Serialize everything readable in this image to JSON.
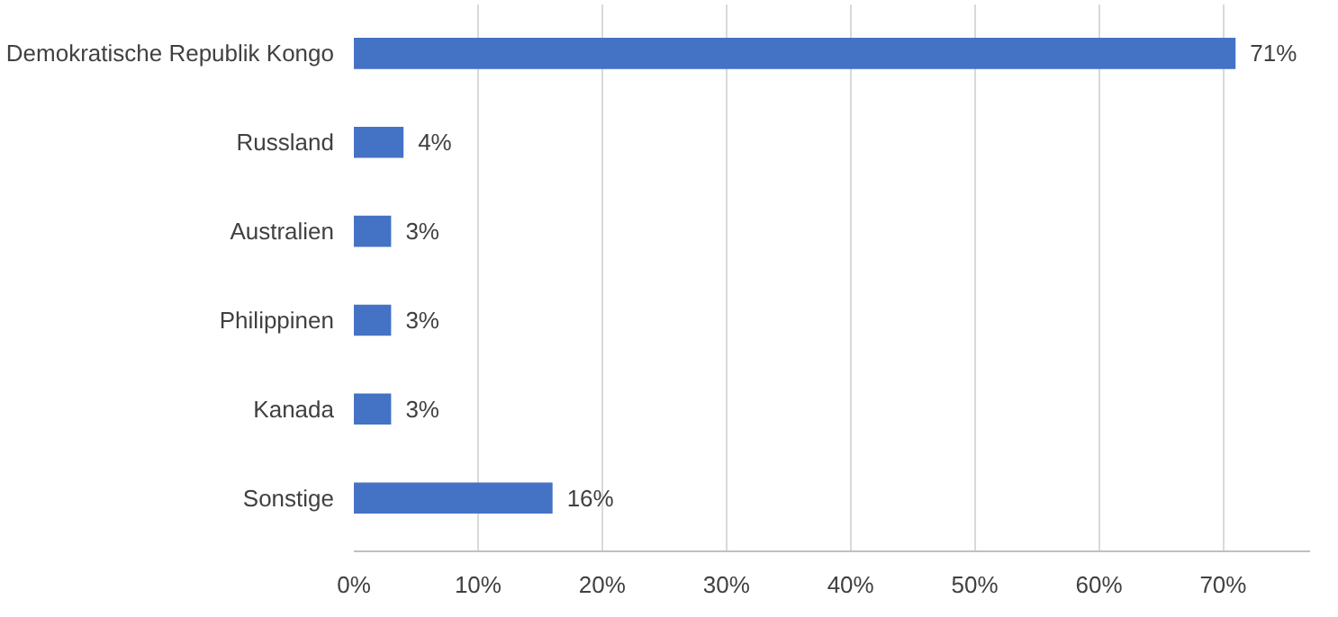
{
  "chart_data": {
    "type": "bar",
    "orientation": "horizontal",
    "categories": [
      "Demokratische Republik Kongo",
      "Russland",
      "Australien",
      "Philippinen",
      "Kanada",
      "Sonstige"
    ],
    "values": [
      71,
      4,
      3,
      3,
      3,
      16
    ],
    "color": "#4472c4",
    "xlim": [
      0,
      77
    ],
    "xticks": [
      {
        "value": 0,
        "label": "0%"
      },
      {
        "value": 10,
        "label": "10%"
      },
      {
        "value": 20,
        "label": "20%"
      },
      {
        "value": 30,
        "label": "30%"
      },
      {
        "value": 40,
        "label": "40%"
      },
      {
        "value": 50,
        "label": "50%"
      },
      {
        "value": 60,
        "label": "60%"
      },
      {
        "value": 70,
        "label": "70%"
      }
    ],
    "value_labels": [
      "71%",
      "4%",
      "3%",
      "3%",
      "3%",
      "16%"
    ],
    "grid": "x"
  }
}
